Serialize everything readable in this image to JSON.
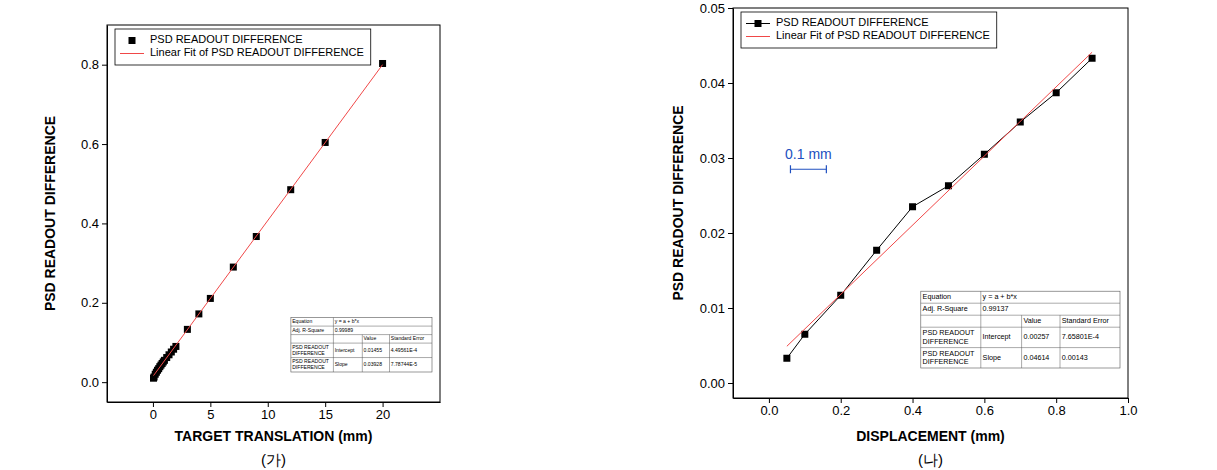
{
  "chart_data": [
    {
      "type": "scatter",
      "title": "(가)",
      "xlabel": "TARGET TRANSLATION (mm)",
      "ylabel": "PSD READOUT DIFFERENCE",
      "xlim": [
        -4,
        25
      ],
      "xticks": [
        0,
        5,
        10,
        15,
        20
      ],
      "ylim": [
        -0.05,
        0.9
      ],
      "yticks": [
        {
          "value": 0,
          "label": "0.0"
        },
        0.2,
        0.4,
        0.6,
        0.8
      ],
      "grid": false,
      "legend": "upper left",
      "series": [
        {
          "name": "PSD READOUT DIFFERENCE",
          "type": "scatter",
          "color": "#000000",
          "marker": "square",
          "line_style": "none",
          "x": [
            0.05,
            0.1,
            0.2,
            0.3,
            0.4,
            0.5,
            0.6,
            0.7,
            0.8,
            0.9,
            1.0,
            1.2,
            1.4,
            1.6,
            1.8,
            2.0,
            3,
            4,
            5,
            7,
            9,
            12,
            15,
            20
          ],
          "values": [
            0.01,
            0.013,
            0.02,
            0.025,
            0.03,
            0.034,
            0.039,
            0.043,
            0.047,
            0.051,
            0.055,
            0.062,
            0.069,
            0.076,
            0.083,
            0.09,
            0.133,
            0.172,
            0.211,
            0.29,
            0.367,
            0.485,
            0.604,
            0.803
          ]
        },
        {
          "name": "Linear Fit of PSD READOUT DIFFERENCE",
          "type": "line",
          "color": "#f04848",
          "marker": "none",
          "line_style": "solid",
          "x": [
            0.05,
            20
          ],
          "values": [
            0.0165,
            0.8001
          ]
        }
      ],
      "annotations": {
        "fit_table": {
          "equation": [
            "Equation",
            "y = a + b*x"
          ],
          "r_square": [
            "Adj. R-Square",
            "0.99989"
          ],
          "header": [
            "Value",
            "Standard Error"
          ],
          "rows": [
            [
              "PSD READOUT DIFFERENCE",
              "Intercept",
              "0.01455",
              "4.49561E-4"
            ],
            [
              "PSD READOUT DIFFERENCE",
              "Slope",
              "0.03928",
              "7.78744E-5"
            ]
          ]
        }
      }
    },
    {
      "type": "line",
      "title": "(나)",
      "xlabel": "DISPLACEMENT (mm)",
      "ylabel": "PSD READOUT DIFFERENCE",
      "xlim": [
        -0.1,
        1.0
      ],
      "xticks": [
        {
          "value": 0,
          "label": "0.0"
        },
        0.2,
        0.4,
        0.6,
        0.8,
        {
          "value": 1,
          "label": "1.0"
        }
      ],
      "ylim": [
        -0.002,
        0.05
      ],
      "yticks": [
        {
          "value": 0,
          "label": "0.00"
        },
        0.01,
        0.02,
        0.03,
        0.04,
        0.05
      ],
      "grid": false,
      "legend": "upper left",
      "series": [
        {
          "name": "PSD READOUT DIFFERENCE",
          "type": "line",
          "color": "#000000",
          "marker": "square",
          "line_style": "solid",
          "x": [
            0.05,
            0.1,
            0.2,
            0.3,
            0.4,
            0.5,
            0.6,
            0.7,
            0.8,
            0.9
          ],
          "values": [
            0.0033,
            0.0065,
            0.0117,
            0.0177,
            0.0235,
            0.0263,
            0.0305,
            0.0348,
            0.0387,
            0.0433
          ]
        },
        {
          "name": "Linear Fit of PSD READOUT DIFFERENCE",
          "type": "line",
          "color": "#f04848",
          "marker": "none",
          "line_style": "solid",
          "x": [
            0.05,
            0.9
          ],
          "values": [
            0.0049,
            0.0441
          ]
        }
      ],
      "annotations": {
        "fit_table": {
          "equation": [
            "Equation",
            "y = a + b*x"
          ],
          "r_square": [
            "Adj. R-Square",
            "0.99137"
          ],
          "header": [
            "Value",
            "Standard Error"
          ],
          "rows": [
            [
              "PSD READOUT DIFFERENCE",
              "Intercept",
              "0.00257",
              "7.65801E-4"
            ],
            [
              "PSD READOUT DIFFERENCE",
              "Slope",
              "0.04614",
              "0.00143"
            ]
          ]
        },
        "scale_bar": {
          "text": "0.1 mm",
          "x": [
            0.06,
            0.16
          ],
          "y": 0.0285,
          "color": "#2050c0"
        }
      }
    }
  ]
}
